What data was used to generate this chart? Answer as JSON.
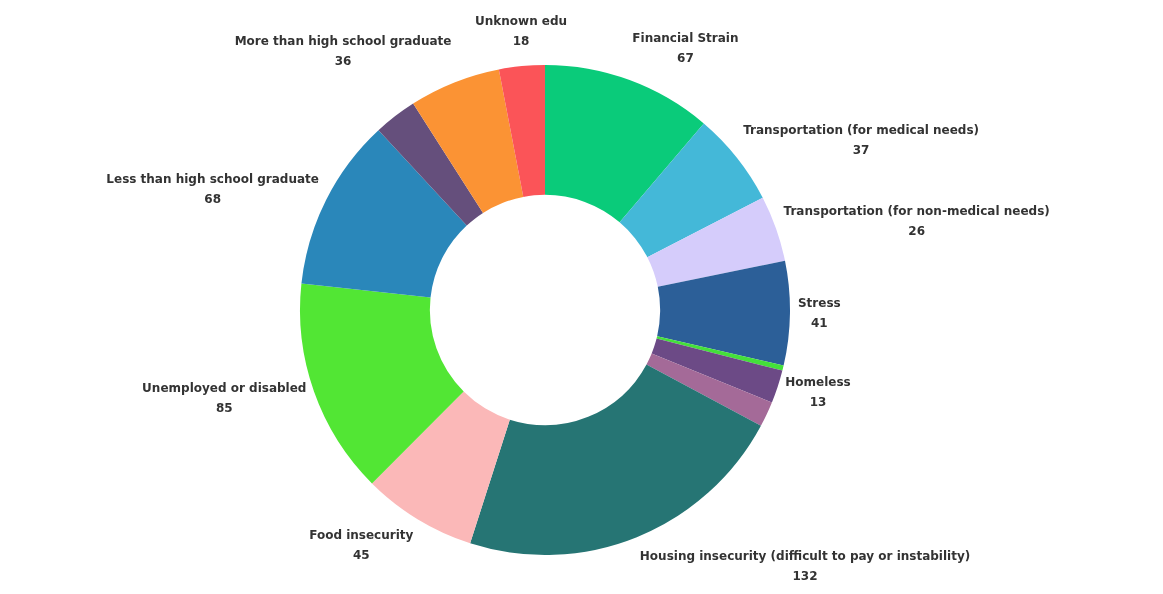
{
  "chart_data": {
    "type": "donut",
    "categories": [
      "Financial Strain",
      "Transportation (for medical needs)",
      "Transportation (for non-medical needs)",
      "Stress",
      null,
      "Homeless",
      null,
      "Housing insecurity (difficult to pay or instability)",
      "Food insecurity",
      "Unemployed or disabled",
      "Less than high school graduate",
      null,
      "More than high school graduate",
      "Unknown edu"
    ],
    "values": [
      67,
      37,
      26,
      41,
      2,
      13,
      10,
      132,
      45,
      85,
      68,
      17,
      36,
      18
    ],
    "value_labels": [
      "67",
      "37",
      "26",
      "41",
      null,
      "13",
      null,
      "132",
      "45",
      "85",
      "68",
      null,
      "36",
      "18"
    ],
    "colors": [
      "#0acb7a",
      "#44b8d8",
      "#d5ccfb",
      "#2c5f98",
      "#44e03a",
      "#6c4a86",
      "#a46a98",
      "#267574",
      "#fbb8b8",
      "#52e634",
      "#2a87ba",
      "#654f7c",
      "#fb9334",
      "#fb5458"
    ],
    "legend": false
  }
}
